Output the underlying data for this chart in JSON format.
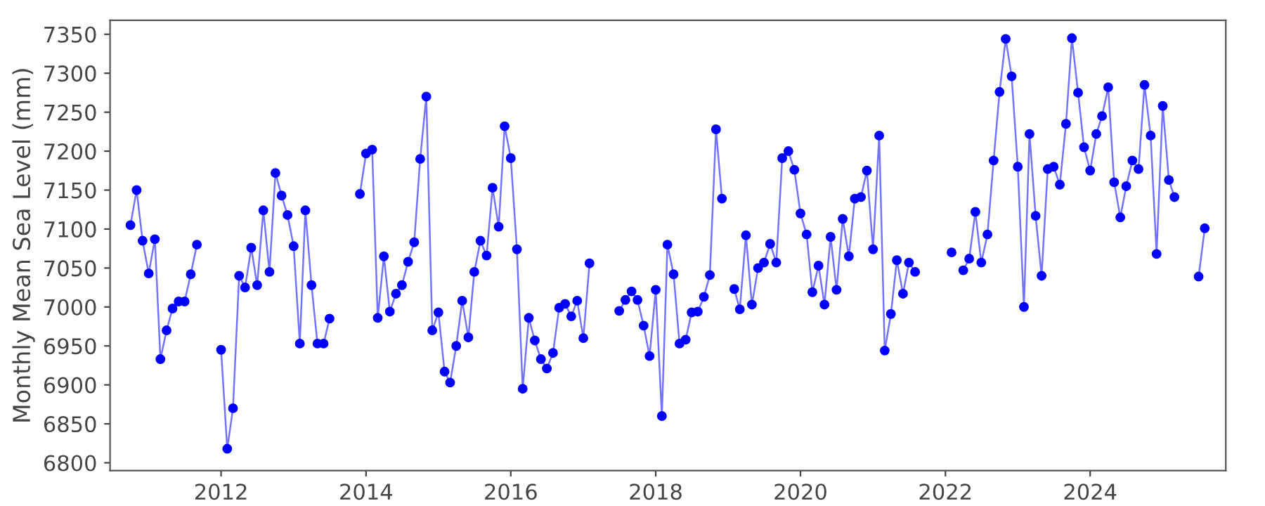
{
  "chart_data": {
    "type": "line",
    "ylabel": "Monthly Mean Sea Level (mm)",
    "x": [
      "2010-10",
      "2010-11",
      "2010-12",
      "2011-01",
      "2011-02",
      "2011-03",
      "2011-04",
      "2011-05",
      "2011-06",
      "2011-07",
      "2011-08",
      "2011-09",
      "2011-10",
      "2012-01",
      "2012-02",
      "2012-03",
      "2012-04",
      "2012-05",
      "2012-06",
      "2012-07",
      "2012-08",
      "2012-09",
      "2012-10",
      "2012-11",
      "2012-12",
      "2013-01",
      "2013-02",
      "2013-03",
      "2013-04",
      "2013-05",
      "2013-06",
      "2013-07",
      "2013-08",
      "2013-12",
      "2014-01",
      "2014-02",
      "2014-03",
      "2014-04",
      "2014-05",
      "2014-06",
      "2014-07",
      "2014-08",
      "2014-09",
      "2014-10",
      "2014-11",
      "2014-12",
      "2015-01",
      "2015-02",
      "2015-03",
      "2015-04",
      "2015-05",
      "2015-06",
      "2015-07",
      "2015-08",
      "2015-09",
      "2015-10",
      "2015-11",
      "2015-12",
      "2016-01",
      "2016-02",
      "2016-03",
      "2016-04",
      "2016-05",
      "2016-06",
      "2016-07",
      "2016-08",
      "2016-09",
      "2016-10",
      "2016-11",
      "2016-12",
      "2017-01",
      "2017-02",
      "2017-03",
      "2017-07",
      "2017-08",
      "2017-09",
      "2017-10",
      "2017-11",
      "2017-12",
      "2018-01",
      "2018-02",
      "2018-03",
      "2018-04",
      "2018-05",
      "2018-06",
      "2018-07",
      "2018-08",
      "2018-09",
      "2018-10",
      "2018-11",
      "2018-12",
      "2019-01",
      "2019-02",
      "2019-03",
      "2019-04",
      "2019-05",
      "2019-06",
      "2019-07",
      "2019-08",
      "2019-09",
      "2019-10",
      "2019-11",
      "2019-12",
      "2020-01",
      "2020-02",
      "2020-03",
      "2020-04",
      "2020-05",
      "2020-06",
      "2020-07",
      "2020-08",
      "2020-09",
      "2020-10",
      "2020-11",
      "2020-12",
      "2021-01",
      "2021-02",
      "2021-03",
      "2021-04",
      "2021-05",
      "2021-06",
      "2021-07",
      "2021-08",
      "2021-09",
      "2022-02",
      "2022-03",
      "2022-04",
      "2022-05",
      "2022-06",
      "2022-07",
      "2022-08",
      "2022-09",
      "2022-10",
      "2022-11",
      "2022-12",
      "2023-01",
      "2023-02",
      "2023-03",
      "2023-04",
      "2023-05",
      "2023-06",
      "2023-07",
      "2023-08",
      "2023-09",
      "2023-10",
      "2023-11",
      "2023-12",
      "2024-01",
      "2024-02",
      "2024-03",
      "2024-04",
      "2024-05",
      "2024-06",
      "2024-07",
      "2024-08",
      "2024-09",
      "2024-10",
      "2024-11",
      "2024-12",
      "2025-01",
      "2025-02",
      "2025-03",
      "2025-04",
      "2025-07",
      "2025-08"
    ],
    "series": [
      {
        "color": "#0000ff",
        "values": [
          7105,
          7150,
          7085,
          7043,
          7087,
          6933,
          6970,
          6998,
          7007,
          7007,
          7042,
          7080,
          null,
          6945,
          6818,
          6870,
          7040,
          7025,
          7076,
          7028,
          7124,
          7045,
          7172,
          7143,
          7118,
          7078,
          6953,
          7124,
          7028,
          6953,
          6953,
          6985,
          null,
          7145,
          7197,
          7202,
          6986,
          7065,
          6994,
          7017,
          7028,
          7058,
          7083,
          7190,
          7270,
          6970,
          6993,
          6917,
          6903,
          6950,
          7008,
          6961,
          7045,
          7085,
          7066,
          7153,
          7103,
          7232,
          7191,
          7074,
          6895,
          6986,
          6957,
          6933,
          6921,
          6941,
          6999,
          7004,
          6988,
          7008,
          6960,
          7056,
          null,
          6995,
          7009,
          7020,
          7009,
          6976,
          6937,
          7022,
          6860,
          7080,
          7042,
          6953,
          6958,
          6993,
          6994,
          7013,
          7041,
          7228,
          7139,
          null,
          7023,
          6997,
          7092,
          7003,
          7050,
          7057,
          7081,
          7057,
          7191,
          7200,
          7176,
          7120,
          7093,
          7019,
          7053,
          7003,
          7090,
          7022,
          7113,
          7065,
          7139,
          7141,
          7175,
          7074,
          7220,
          6944,
          6991,
          7060,
          7017,
          7057,
          7045,
          null,
          7070,
          null,
          7047,
          7062,
          7122,
          7057,
          7093,
          7188,
          7276,
          7344,
          7296,
          7180,
          7000,
          7222,
          7117,
          7040,
          7177,
          7180,
          7157,
          7235,
          7345,
          7275,
          7205,
          7175,
          7222,
          7245,
          7282,
          7160,
          7115,
          7155,
          7188,
          7177,
          7285,
          7220,
          7068,
          7258,
          7163,
          7141,
          null,
          7039,
          7101
        ]
      }
    ],
    "xlim": [
      "2010-06-20",
      "2025-11-15"
    ],
    "xticks": [
      "2012",
      "2014",
      "2016",
      "2018",
      "2020",
      "2022",
      "2024"
    ],
    "ylim": [
      6790,
      7368
    ],
    "yticks": [
      6800,
      6850,
      6900,
      6950,
      7000,
      7050,
      7100,
      7150,
      7200,
      7250,
      7300,
      7350
    ],
    "marker": "circle",
    "line_style": "solid",
    "grid": false,
    "legend": false
  }
}
